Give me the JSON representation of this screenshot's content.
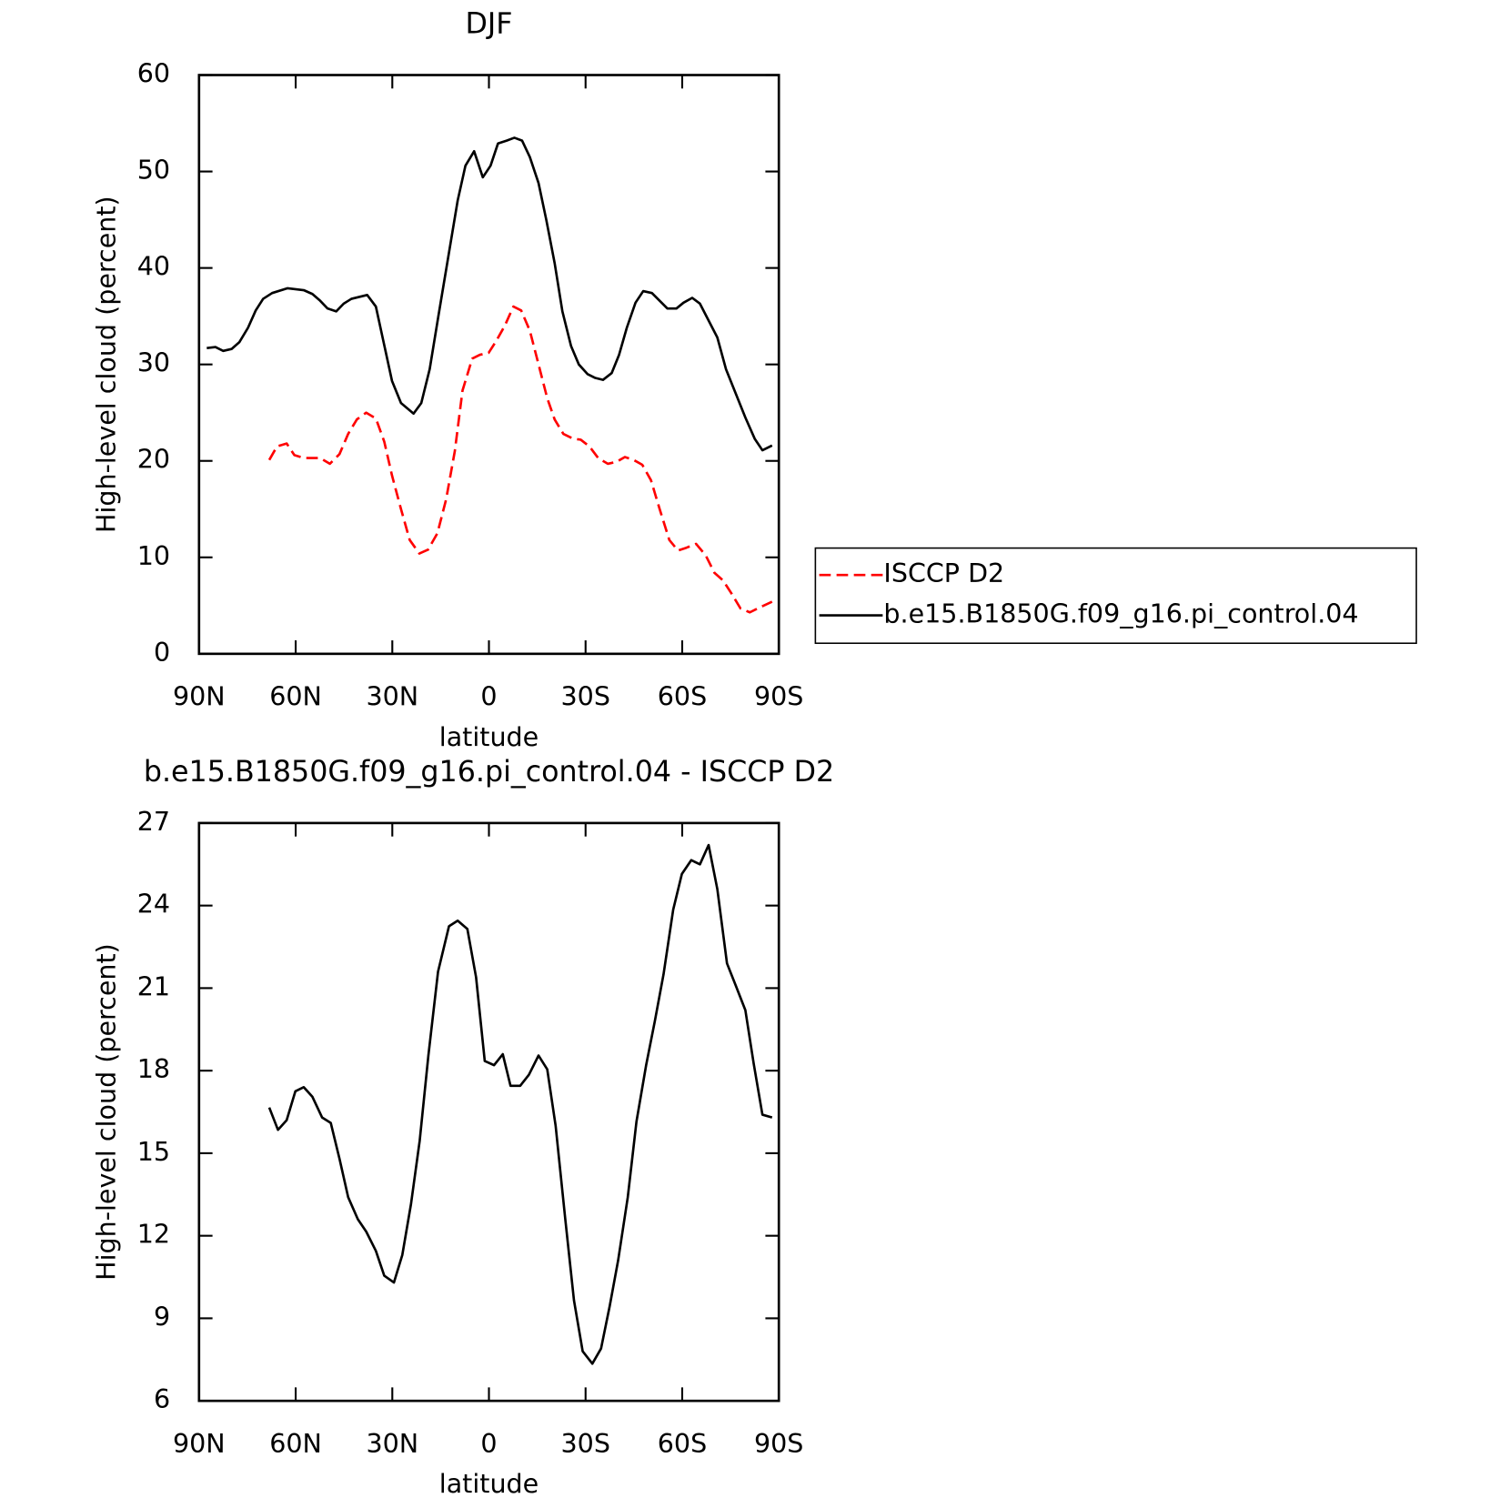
{
  "chart_data": [
    {
      "type": "line",
      "title": "DJF",
      "xlabel": "latitude",
      "ylabel": "High-level cloud (percent)",
      "xlim": [
        90,
        -90
      ],
      "xticks": [
        {
          "value": 90,
          "label": "90N"
        },
        {
          "value": 60,
          "label": "60N"
        },
        {
          "value": 30,
          "label": "30N"
        },
        0,
        {
          "value": -30,
          "label": "30S"
        },
        {
          "value": -60,
          "label": "60S"
        },
        {
          "value": -90,
          "label": "90S"
        }
      ],
      "ylim": [
        0,
        60
      ],
      "yticks": [
        0,
        10,
        20,
        30,
        40,
        50,
        60
      ],
      "legend": "right",
      "series": [
        {
          "name": "ISCCP D2",
          "color": "#ff0000",
          "dash": true,
          "x": [
            68.2,
            65.8,
            62.8,
            60.4,
            57.5,
            54.8,
            52.4,
            49.4,
            46.4,
            43.7,
            41,
            38.1,
            35.1,
            32.5,
            30.1,
            27.3,
            24.6,
            21.6,
            18.9,
            16,
            13.3,
            10.6,
            8.2,
            5.2,
            2.8,
            0.1,
            -2.2,
            -4.9,
            -7.6,
            -10,
            -12.7,
            -15.4,
            -18.1,
            -20.4,
            -23.1,
            -26.1,
            -28.5,
            -31.2,
            -33.9,
            -36.9,
            -39.6,
            -42.2,
            -44.9,
            -47.6,
            -50.3,
            -53,
            -56,
            -58.7,
            -61.3,
            -64.3,
            -67.3,
            -70,
            -72.7,
            -75.4,
            -78.1,
            -81,
            -84,
            -87.9
          ],
          "values": [
            20.1,
            21.5,
            21.8,
            20.6,
            20.3,
            20.3,
            20.3,
            19.7,
            20.7,
            22.8,
            24.3,
            25,
            24.4,
            22,
            18.5,
            15,
            11.8,
            10.4,
            10.8,
            12.5,
            16,
            21,
            27.3,
            30.6,
            31,
            31.2,
            32.4,
            34,
            36,
            35.6,
            33.5,
            30,
            26.5,
            24.3,
            22.8,
            22.3,
            22.2,
            21.5,
            20.3,
            19.7,
            19.9,
            20.4,
            20.1,
            19.6,
            18,
            15,
            11.8,
            10.7,
            11,
            11.4,
            10.2,
            8.4,
            7.6,
            6.2,
            4.7,
            4.3,
            4.8,
            5.4
          ]
        },
        {
          "name": "b.e15.B1850G.f09_g16.pi_control.04",
          "color": "#000000",
          "dash": false,
          "x": [
            87.6,
            84.9,
            82.5,
            79.9,
            77.5,
            74.8,
            72.4,
            70.1,
            67.3,
            62.5,
            57.5,
            54.8,
            52.4,
            50.1,
            47.4,
            45.1,
            42.7,
            37.8,
            35.1,
            32.5,
            30.1,
            27.3,
            23.4,
            21,
            18.4,
            15.7,
            12.7,
            9.7,
            7.3,
            4.6,
            1.9,
            -0.5,
            -2.8,
            -5.5,
            -7.9,
            -10.3,
            -12.7,
            -15.4,
            -17.8,
            -20.4,
            -22.8,
            -25.5,
            -27.9,
            -30.6,
            -33,
            -35.4,
            -38.1,
            -40.4,
            -42.8,
            -45.5,
            -47.9,
            -50.6,
            -53,
            -55.4,
            -58.2,
            -60.4,
            -63.1,
            -65.5,
            -70.9,
            -73.6,
            -76.6,
            -79.6,
            -82.5,
            -84.9,
            -87.9
          ],
          "values": [
            31.7,
            31.8,
            31.4,
            31.6,
            32.3,
            33.8,
            35.6,
            36.8,
            37.4,
            37.9,
            37.7,
            37.3,
            36.6,
            35.8,
            35.5,
            36.3,
            36.8,
            37.2,
            36,
            32,
            28.3,
            26,
            24.9,
            26,
            29.5,
            35,
            41,
            47,
            50.6,
            52.1,
            49.4,
            50.6,
            52.9,
            53.2,
            53.5,
            53.2,
            51.5,
            48.8,
            45,
            40.5,
            35.5,
            31.9,
            30,
            29,
            28.6,
            28.4,
            29.1,
            31,
            33.8,
            36.4,
            37.6,
            37.4,
            36.6,
            35.8,
            35.8,
            36.4,
            36.9,
            36.3,
            32.8,
            29.5,
            27,
            24.5,
            22.3,
            21.1,
            21.6
          ]
        }
      ]
    },
    {
      "type": "line",
      "title": "b.e15.B1850G.f09_g16.pi_control.04 - ISCCP D2",
      "xlabel": "latitude",
      "ylabel": "High-level cloud (percent)",
      "xlim": [
        90,
        -90
      ],
      "xticks": [
        {
          "value": 90,
          "label": "90N"
        },
        {
          "value": 60,
          "label": "60N"
        },
        {
          "value": 30,
          "label": "30N"
        },
        0,
        {
          "value": -30,
          "label": "30S"
        },
        {
          "value": -60,
          "label": "60S"
        },
        {
          "value": -90,
          "label": "90S"
        }
      ],
      "ylim": [
        6,
        27
      ],
      "yticks": [
        6,
        9,
        12,
        15,
        18,
        21,
        24,
        27
      ],
      "series": [
        {
          "color": "#000000",
          "dash": false,
          "x": [
            68.2,
            65.5,
            62.8,
            60.1,
            57.5,
            54.8,
            51.8,
            49.1,
            46.4,
            43.7,
            40.7,
            38.1,
            35.1,
            32.5,
            29.5,
            26.9,
            24.2,
            21.5,
            18.8,
            15.8,
            12.4,
            9.7,
            6.7,
            4,
            1.3,
            -1.6,
            -4.3,
            -6.7,
            -9.7,
            -12.4,
            -15.4,
            -18.1,
            -20.7,
            -23.7,
            -26.4,
            -29.1,
            -32.1,
            -34.8,
            -37.5,
            -40.1,
            -43.1,
            -45.8,
            -48.8,
            -51.5,
            -54.2,
            -57.2,
            -59.9,
            -62.8,
            -65.5,
            -68.2,
            -70.9,
            -73.9,
            -76.6,
            -79.6,
            -82.2,
            -84.9,
            -87.9
          ],
          "values": [
            16.66,
            15.85,
            16.2,
            17.25,
            17.4,
            17.05,
            16.3,
            16.1,
            14.8,
            13.4,
            12.6,
            12.15,
            11.45,
            10.55,
            10.3,
            11.3,
            13.15,
            15.45,
            18.55,
            21.6,
            23.25,
            23.45,
            23.15,
            21.4,
            18.35,
            18.2,
            18.6,
            17.45,
            17.45,
            17.85,
            18.55,
            18.05,
            16,
            12.6,
            9.65,
            7.8,
            7.35,
            7.9,
            9.45,
            11.1,
            13.4,
            16.15,
            18.2,
            19.8,
            21.5,
            23.85,
            25.15,
            25.65,
            25.5,
            26.2,
            24.6,
            21.9,
            21.1,
            20.2,
            18.25,
            16.4,
            16.3
          ]
        }
      ]
    }
  ]
}
